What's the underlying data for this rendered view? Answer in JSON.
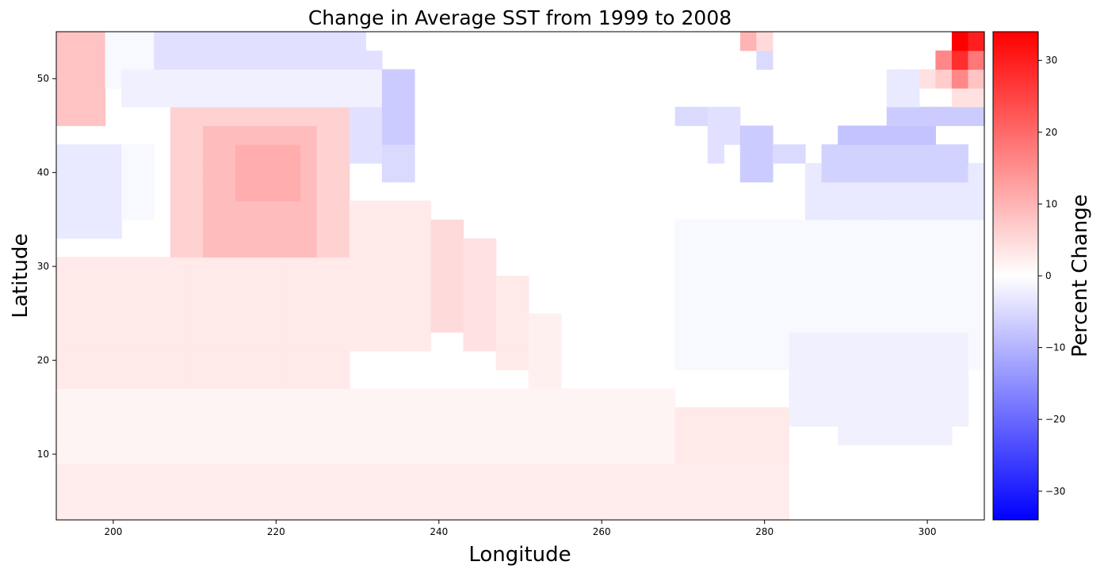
{
  "chart_data": {
    "type": "heatmap",
    "title": "Change in Average SST from 1999 to 2008",
    "xlabel": "Longitude",
    "ylabel": "Latitude",
    "xlim": [
      193,
      307
    ],
    "ylim": [
      3,
      55
    ],
    "x_ticks": [
      200,
      220,
      240,
      260,
      280,
      300
    ],
    "y_ticks": [
      10,
      20,
      30,
      40,
      50
    ],
    "colorbar": {
      "label": "Percent Change",
      "range": [
        -34,
        34
      ],
      "ticks": [
        30,
        20,
        10,
        0,
        -10,
        -20,
        -30
      ],
      "colormap": "bwr",
      "colors": {
        "low": "#0000ff",
        "mid": "#ffffff",
        "high": "#ff0000"
      }
    },
    "grid_resolution_deg": 2,
    "regions": [
      {
        "lon": [
          193,
          199
        ],
        "lat": [
          45,
          55
        ],
        "value": 8
      },
      {
        "lon": [
          199,
          205
        ],
        "lat": [
          49,
          55
        ],
        "value": -1
      },
      {
        "lon": [
          205,
          231
        ],
        "lat": [
          51,
          55
        ],
        "value": -4
      },
      {
        "lon": [
          231,
          233
        ],
        "lat": [
          51,
          53
        ],
        "value": -4
      },
      {
        "lon": [
          201,
          233
        ],
        "lat": [
          47,
          51
        ],
        "value": -2
      },
      {
        "lon": [
          233,
          237
        ],
        "lat": [
          43,
          51
        ],
        "value": -7
      },
      {
        "lon": [
          229,
          233
        ],
        "lat": [
          41,
          47
        ],
        "value": -4
      },
      {
        "lon": [
          233,
          237
        ],
        "lat": [
          39,
          43
        ],
        "value": -5
      },
      {
        "lon": [
          193,
          201
        ],
        "lat": [
          33,
          43
        ],
        "value": -3
      },
      {
        "lon": [
          201,
          205
        ],
        "lat": [
          35,
          43
        ],
        "value": -1
      },
      {
        "lon": [
          207,
          229
        ],
        "lat": [
          29,
          47
        ],
        "value": 6
      },
      {
        "lon": [
          211,
          225
        ],
        "lat": [
          31,
          45
        ],
        "value": 9
      },
      {
        "lon": [
          215,
          223
        ],
        "lat": [
          37,
          43
        ],
        "value": 11
      },
      {
        "lon": [
          229,
          239
        ],
        "lat": [
          21,
          37
        ],
        "value": 3
      },
      {
        "lon": [
          239,
          243
        ],
        "lat": [
          23,
          35
        ],
        "value": 5
      },
      {
        "lon": [
          243,
          247
        ],
        "lat": [
          21,
          33
        ],
        "value": 4
      },
      {
        "lon": [
          247,
          251
        ],
        "lat": [
          19,
          29
        ],
        "value": 3
      },
      {
        "lon": [
          251,
          255
        ],
        "lat": [
          17,
          25
        ],
        "value": 2
      },
      {
        "lon": [
          193,
          229
        ],
        "lat": [
          17,
          31
        ],
        "value": 3
      },
      {
        "lon": [
          201,
          229
        ],
        "lat": [
          13,
          17
        ],
        "value": -1
      },
      {
        "lon": [
          193,
          269
        ],
        "lat": [
          9,
          17
        ],
        "value": 1.5
      },
      {
        "lon": [
          193,
          283
        ],
        "lat": [
          3,
          9
        ],
        "value": 2.5
      },
      {
        "lon": [
          269,
          283
        ],
        "lat": [
          9,
          15
        ],
        "value": 3
      },
      {
        "lon": [
          277,
          279
        ],
        "lat": [
          53,
          55
        ],
        "value": 10
      },
      {
        "lon": [
          279,
          281
        ],
        "lat": [
          53,
          55
        ],
        "value": 5
      },
      {
        "lon": [
          279,
          281
        ],
        "lat": [
          51,
          53
        ],
        "value": -5
      },
      {
        "lon": [
          269,
          275
        ],
        "lat": [
          45,
          47
        ],
        "value": -5
      },
      {
        "lon": [
          273,
          277
        ],
        "lat": [
          43,
          47
        ],
        "value": -4
      },
      {
        "lon": [
          273,
          275
        ],
        "lat": [
          41,
          43
        ],
        "value": -4
      },
      {
        "lon": [
          277,
          281
        ],
        "lat": [
          39,
          45
        ],
        "value": -7
      },
      {
        "lon": [
          281,
          285
        ],
        "lat": [
          41,
          43
        ],
        "value": -5
      },
      {
        "lon": [
          285,
          307
        ],
        "lat": [
          35,
          41
        ],
        "value": -3
      },
      {
        "lon": [
          287,
          305
        ],
        "lat": [
          39,
          43
        ],
        "value": -6
      },
      {
        "lon": [
          289,
          301
        ],
        "lat": [
          43,
          45
        ],
        "value": -8
      },
      {
        "lon": [
          295,
          307
        ],
        "lat": [
          45,
          47
        ],
        "value": -7
      },
      {
        "lon": [
          295,
          299
        ],
        "lat": [
          47,
          51
        ],
        "value": -3
      },
      {
        "lon": [
          269,
          307
        ],
        "lat": [
          19,
          35
        ],
        "value": -1
      },
      {
        "lon": [
          283,
          305
        ],
        "lat": [
          13,
          23
        ],
        "value": -2
      },
      {
        "lon": [
          289,
          303
        ],
        "lat": [
          11,
          15
        ],
        "value": -2
      },
      {
        "lon": [
          299,
          301
        ],
        "lat": [
          49,
          51
        ],
        "value": 4
      },
      {
        "lon": [
          301,
          303
        ],
        "lat": [
          49,
          51
        ],
        "value": 7
      },
      {
        "lon": [
          301,
          303
        ],
        "lat": [
          51,
          53
        ],
        "value": 16
      },
      {
        "lon": [
          303,
          305
        ],
        "lat": [
          49,
          51
        ],
        "value": 16
      },
      {
        "lon": [
          303,
          305
        ],
        "lat": [
          51,
          53
        ],
        "value": 28
      },
      {
        "lon": [
          303,
          305
        ],
        "lat": [
          53,
          55
        ],
        "value": 34
      },
      {
        "lon": [
          305,
          307
        ],
        "lat": [
          53,
          55
        ],
        "value": 30
      },
      {
        "lon": [
          305,
          307
        ],
        "lat": [
          51,
          53
        ],
        "value": 18
      },
      {
        "lon": [
          305,
          307
        ],
        "lat": [
          49,
          51
        ],
        "value": 8
      },
      {
        "lon": [
          303,
          307
        ],
        "lat": [
          47,
          49
        ],
        "value": 4
      }
    ]
  }
}
